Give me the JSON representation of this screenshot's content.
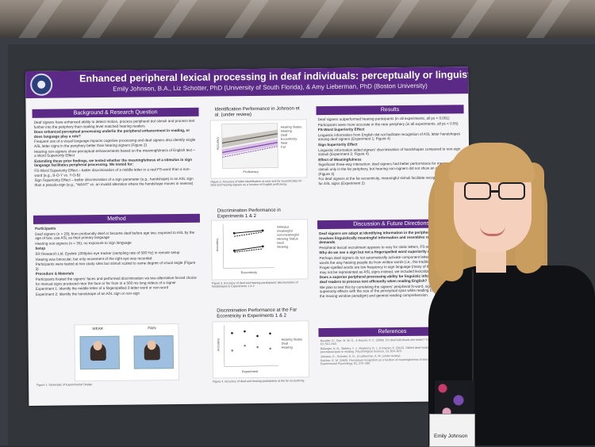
{
  "poster": {
    "title": "Enhanced peripheral lexical processing in deaf individuals: perceptually or linguistically driven?",
    "authors": "Emily Johnson, B.A., Liz Schotter, PhD (University of South Florida), & Amy Lieberman, PhD (Boston University)",
    "sections": {
      "background": "Background & Research Question",
      "method": "Method",
      "results": "Results",
      "discussion": "Discussion & Future Directions",
      "references": "References"
    },
    "background_text": [
      "Deaf signers have enhanced ability to detect motion, process peripheral dot stimuli and process text further into the periphery than reading level matched hearing readers",
      "Does enhanced perceptual processing underlie the peripheral enhancement in reading, or does language play a role?",
      "Frequent use of a visual language impacts cognitive processing and deaf signers also identify single ASL letter signs in the periphery better than hearing signers (Figure 2)",
      "Hearing non-signers show perceptual enhancements based on the meaningfulness of English text – a Word Superiority Effect",
      "Extending these prior findings, we tested whether the meaningfulness of a stimulus in sign language facilitates peripheral processing. We tested for:",
      "FS-Word Superiority Effect – better discrimination of a middle letter in a real FS-word than a non-word (e.g., B-O-Y vs. Y-O-B)",
      "Sign Superiority Effect – better discrimination of a sign parameter (e.g., handshape) in an ASL sign than a pseudo-sign (e.g., \"WANT\" vs. an invalid alteration where the handshape moves in reverse)"
    ],
    "method_text": [
      "Participants",
      "Deaf signers (n = 29); born profoundly deaf or became deaf before age two; exposed to ASL by the age of two; use ASL as their primary language",
      "Hearing non-signers (n = 35); no exposure to sign language",
      "Setup",
      "SR Research Ltd. Eyelink 1000plus eye tracker (sampling rate of 500 Hz) in remote setup",
      "Viewing was binocular, but only movement of the right eye was recorded",
      "Participants were tested at two study sites but stimuli scaled to same degree of visual angle (Figure 3)",
      "Procedure & Materials",
      "Participants fixated the signers' faces and performed discrimination via two-alternative forced choice for manual signs produced near the face or far from in a 500 ms long videos of a signer",
      "Experiment 1: Identify the middle letter of a fingerspelled 3-letter word or non-word",
      "Experiment 2: Identify the handshape of an ASL sign or non-sign"
    ],
    "method_images": [
      "WEAR",
      "PAIN"
    ],
    "method_caption": "Figure 1. Schematic of Experimental Design.",
    "fig2": {
      "title": "Identification Performance in Johnson et al. (under review)",
      "xlabel": "Proficiency",
      "ylabel": "Accuracy",
      "legend_title": "Hearing Status",
      "legend_items": [
        "Hearing",
        "Deaf"
      ],
      "legend_title2": "Eccentricity",
      "legend_items2": [
        "Near",
        "Far"
      ],
      "caption": "Figure 2. Accuracy of letter identification at near and far eccentricities for deaf and hearing signers as a function of English proficiency."
    },
    "fig3": {
      "title": "Discrimination Performance in Experiments 1 & 2",
      "xlabel": "Eccentricity",
      "ylabel": "Accuracy",
      "legend_title": "Stimulus",
      "legend_items": [
        "meaningful",
        "non-meaningful"
      ],
      "legend_title2": "Hearing Status",
      "legend_items2": [
        "Deaf",
        "Hearing"
      ],
      "caption": "Figure 3. Accuracy of deaf and hearing participants' discrimination of handshapes in Experiments 1 & 2."
    },
    "fig4": {
      "title": "Discrimination Performance at the Far Eccentricity in Experiments 1 & 2",
      "xlabel": "Experiment",
      "ylabel": "Accuracy",
      "legend_title": "Hearing Status",
      "legend_items": [
        "Deaf",
        "Hearing"
      ],
      "caption": "Figure 4. Accuracy of deaf and hearing participants at the far eccentricity."
    },
    "results_text": [
      "Deaf signers outperformed hearing participants (in all experiments, all ps < 0.001)",
      "Participants were more accurate in the near periphery (in all experiments, all ps < 0.05)",
      "FS-Word Superiority Effect",
      "Linguistic information from English did not facilitate recognition of ASL letter handshapes among deaf signers (Experiment 1; Figure 4)",
      "Sign Superiority Effect",
      "Linguistic information aided signers' discrimination of handshapes compared to non-sign stimuli (Experiment 2; Figure 4)",
      "Effect of Meaningfulness",
      "Significant three-way interaction: deaf signers had better performance for meaningful stimuli only in the far periphery, but hearing non-signers did not show an interaction (Figure 3)",
      "For deaf signers at the far eccentricity, meaningful stimuli facilitate recognition, especially for ASL signs (Experiment 2)"
    ],
    "discussion_text": [
      "Deaf signers are adept at identifying information in the periphery when the task involves linguistically meaningful information and resembles real world processing demands",
      "Peripheral lexical recruitment appears to vary for static letters, FS-words, and signs",
      "Why do we see a sign but not a fingerspelled word superiority effect?",
      "Perhaps deaf signers do not automatically activate component letters from fingerspelled words the way hearing people do from written words (i.e., the traditional WSE)",
      "Finger-spelled words are low frequency in sign language (many of the stimuli we used may not be represented as ASL signs instead, we included lexicalized FS-words)",
      "Does a superior peripheral processing ability for linguistic information allow skilled deaf readers to process text efficiently when reading English?",
      "We plan to test this by correlating the signers' peripheral fs-word, sign, and English word superiority effects with the size of the perceptual span while reading English text (using the moving window paradigm) and general reading comprehension."
    ],
    "references_text": [
      "Bavelier, D., Dye, M. W. G., & Hauser, P. C. (2006). Do deaf individuals see better? Trends in Cognitive Sciences, 10, 512–518.",
      "Bélanger, N. N., Slattery, T. J., Mayberry, R. I., & Rayner, K. (2012). Skilled deaf readers have an enhanced perceptual span in reading. Psychological Science, 23, 816–823.",
      "Johnson, E., Schotter, E. R., & Lieberman, A. M. (under review).",
      "Reicher, G. M. (1969). Perceptual recognition as a function of meaningfulness of stimulus material. Journal of Experimental Psychology, 81, 275–280."
    ]
  },
  "badge": {
    "name": "Emily Johnson"
  },
  "colors": {
    "poster_accent": "#5b2a86",
    "poster_bg": "#f4f3f5",
    "wall": "#3a3e44"
  }
}
